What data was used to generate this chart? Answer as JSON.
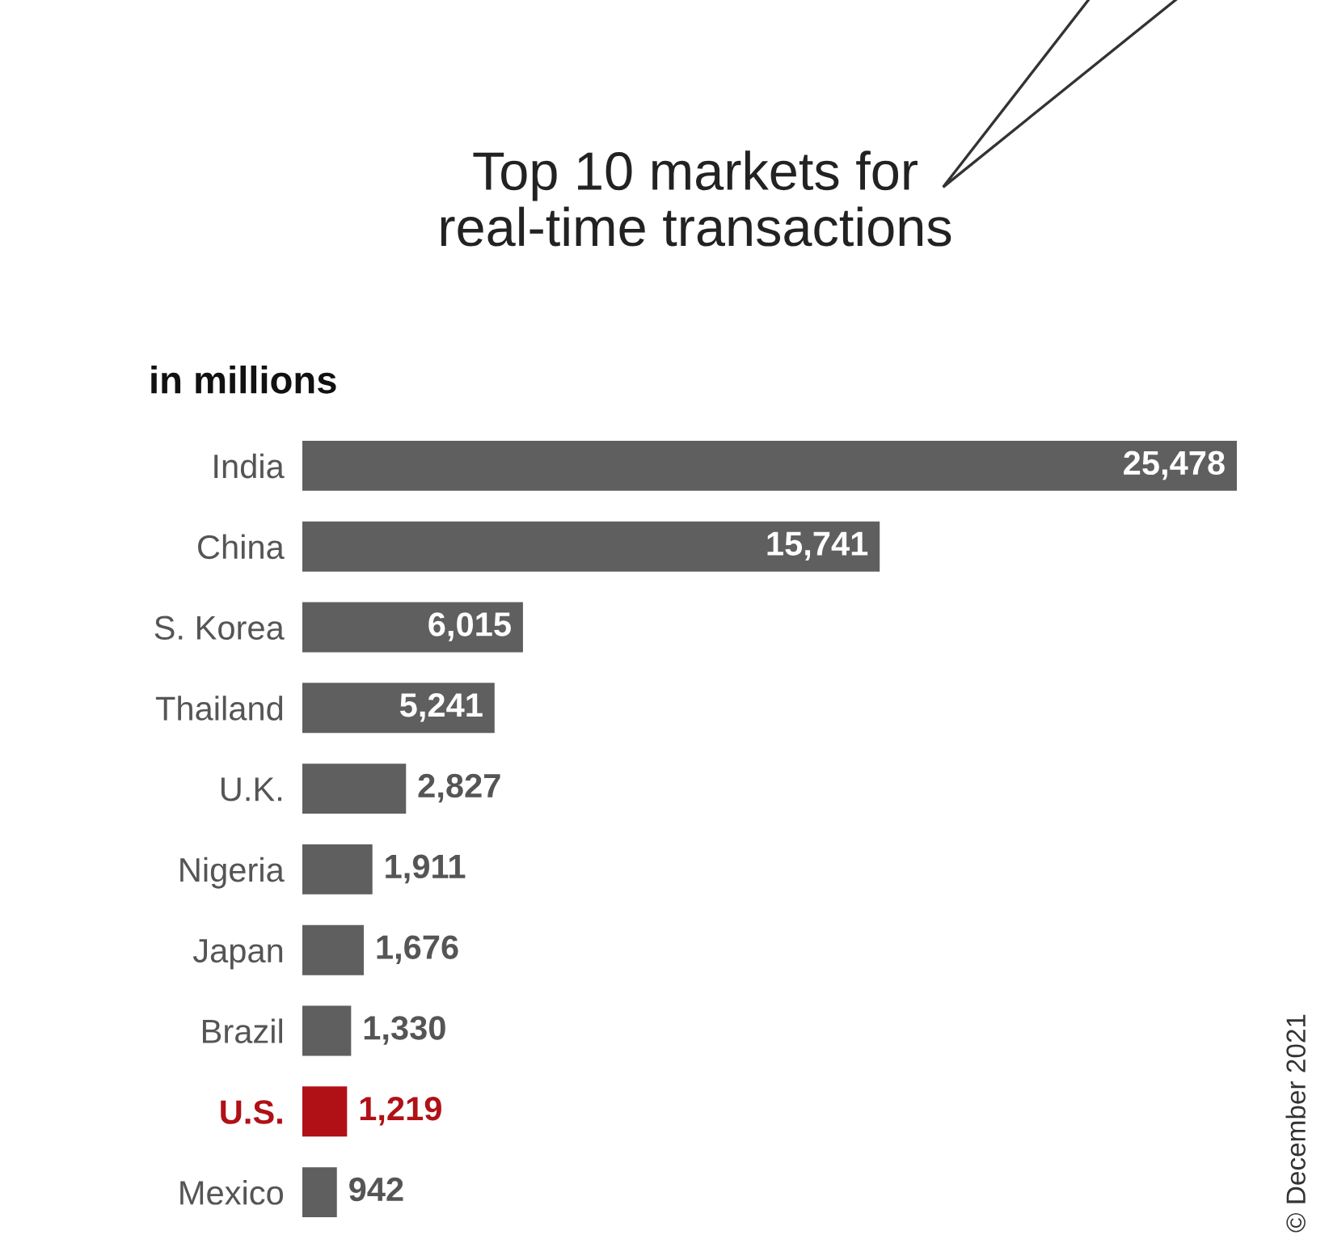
{
  "chart_data": {
    "type": "bar",
    "orientation": "horizontal",
    "title": "Top 10 markets for\nreal-time transactions",
    "subtitle": "in millions",
    "categories": [
      "India",
      "China",
      "S. Korea",
      "Thailand",
      "U.K.",
      "Nigeria",
      "Japan",
      "Brazil",
      "U.S.",
      "Mexico"
    ],
    "values": [
      25478,
      15741,
      6015,
      5241,
      2827,
      1911,
      1676,
      1330,
      1219,
      942
    ],
    "colors": [
      "#5f5f5f",
      "#5f5f5f",
      "#5f5f5f",
      "#5f5f5f",
      "#5f5f5f",
      "#5f5f5f",
      "#5f5f5f",
      "#5f5f5f",
      "#b01116",
      "#5f5f5f"
    ],
    "value_labels": [
      "25,478",
      "15,741",
      "6,015",
      "5,241",
      "2,827",
      "1,911",
      "1,676",
      "1,330",
      "1,219",
      "942"
    ],
    "annotations": [
      "© December 2021"
    ],
    "grid": false,
    "legend": false
  }
}
